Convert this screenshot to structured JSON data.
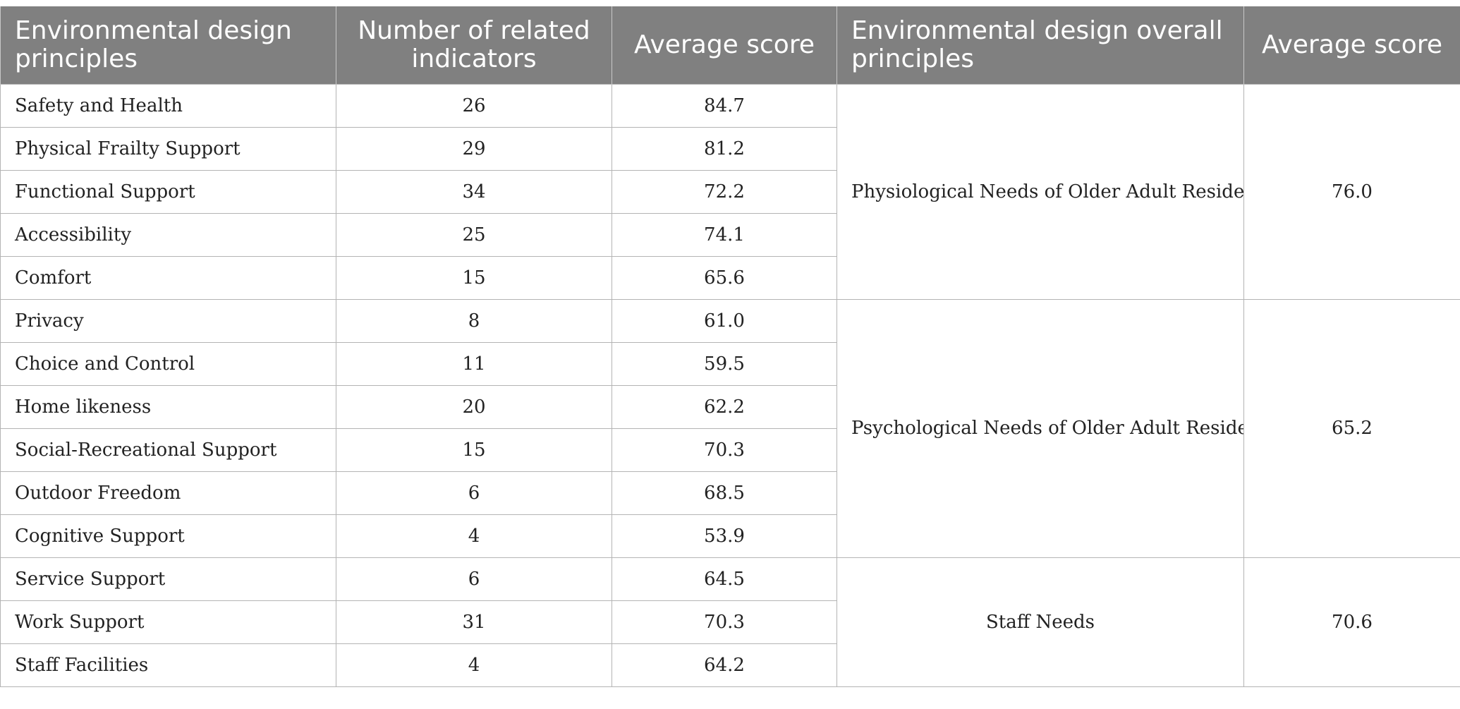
{
  "headers": {
    "principle": "Environmental design principles",
    "indicators": "Number of related indicators",
    "score": "Average score",
    "overall": "Environmental design overall principles",
    "overall_score": "Average score"
  },
  "groups": [
    {
      "overall": "Physiological Needs of Older Adult Residents",
      "overall_score": "76.0",
      "rows": [
        {
          "principle": "Safety and Health",
          "indicators": "26",
          "score": "84.7"
        },
        {
          "principle": "Physical Frailty Support",
          "indicators": "29",
          "score": "81.2"
        },
        {
          "principle": "Functional Support",
          "indicators": "34",
          "score": "72.2"
        },
        {
          "principle": "Accessibility",
          "indicators": "25",
          "score": "74.1"
        },
        {
          "principle": "Comfort",
          "indicators": "15",
          "score": "65.6"
        }
      ]
    },
    {
      "overall": "Psychological Needs of Older Adult Residents",
      "overall_score": "65.2",
      "rows": [
        {
          "principle": "Privacy",
          "indicators": "8",
          "score": "61.0"
        },
        {
          "principle": "Choice and Control",
          "indicators": "11",
          "score": "59.5"
        },
        {
          "principle": "Home likeness",
          "indicators": "20",
          "score": "62.2"
        },
        {
          "principle": "Social-Recreational Support",
          "indicators": "15",
          "score": "70.3"
        },
        {
          "principle": "Outdoor Freedom",
          "indicators": "6",
          "score": "68.5"
        },
        {
          "principle": "Cognitive Support",
          "indicators": "4",
          "score": "53.9"
        }
      ]
    },
    {
      "overall": "Staff Needs",
      "overall_score": "70.6",
      "rows": [
        {
          "principle": "Service Support",
          "indicators": "6",
          "score": "64.5"
        },
        {
          "principle": "Work Support",
          "indicators": "31",
          "score": "70.3"
        },
        {
          "principle": "Staff Facilities",
          "indicators": "4",
          "score": "64.2"
        }
      ]
    }
  ]
}
